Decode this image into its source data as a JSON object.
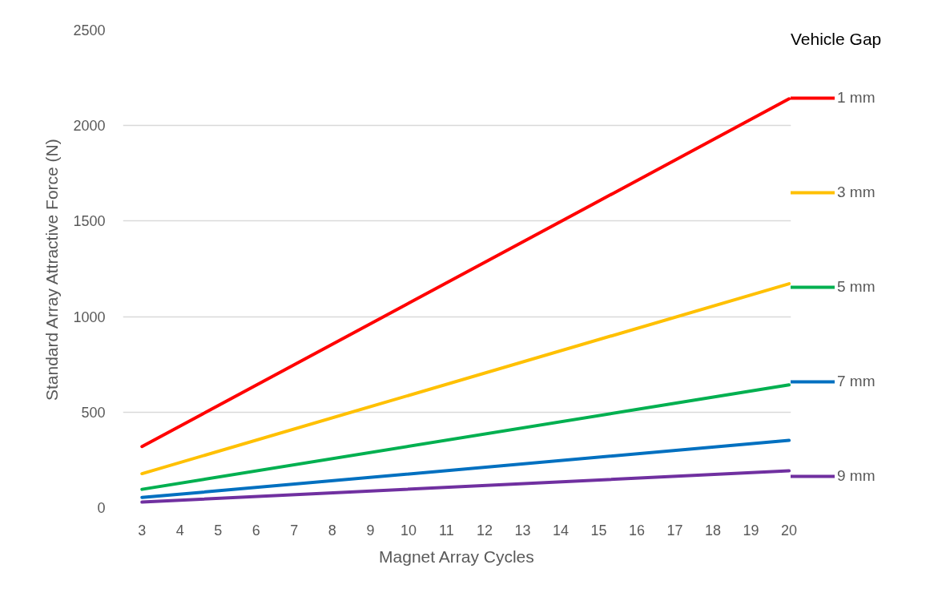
{
  "chart_data": {
    "type": "line",
    "xlabel": "Magnet Array Cycles",
    "ylabel": "Standard Array Attractive Force (N)",
    "legend_title": "Vehicle Gap",
    "x": [
      3,
      20
    ],
    "xlim": [
      2.5,
      20.05
    ],
    "xticks": [
      3,
      4,
      5,
      6,
      7,
      8,
      9,
      10,
      11,
      12,
      13,
      14,
      15,
      16,
      17,
      18,
      19,
      20
    ],
    "ylim": [
      0,
      2500
    ],
    "yticks": [
      0,
      500,
      1000,
      1500,
      2000,
      2500
    ],
    "grid": "y",
    "legend": "right",
    "marker": "none",
    "line_style": "solid",
    "series": [
      {
        "name": "1 mm",
        "color": "#ff0000",
        "values": [
          320,
          2140
        ]
      },
      {
        "name": "3 mm",
        "color": "#ffc000",
        "values": [
          178,
          1172
        ]
      },
      {
        "name": "5 mm",
        "color": "#00b050",
        "values": [
          96,
          643
        ]
      },
      {
        "name": "7 mm",
        "color": "#0070c0",
        "values": [
          53,
          352
        ]
      },
      {
        "name": "9 mm",
        "color": "#7030a0",
        "values": [
          29,
          193
        ]
      }
    ]
  }
}
